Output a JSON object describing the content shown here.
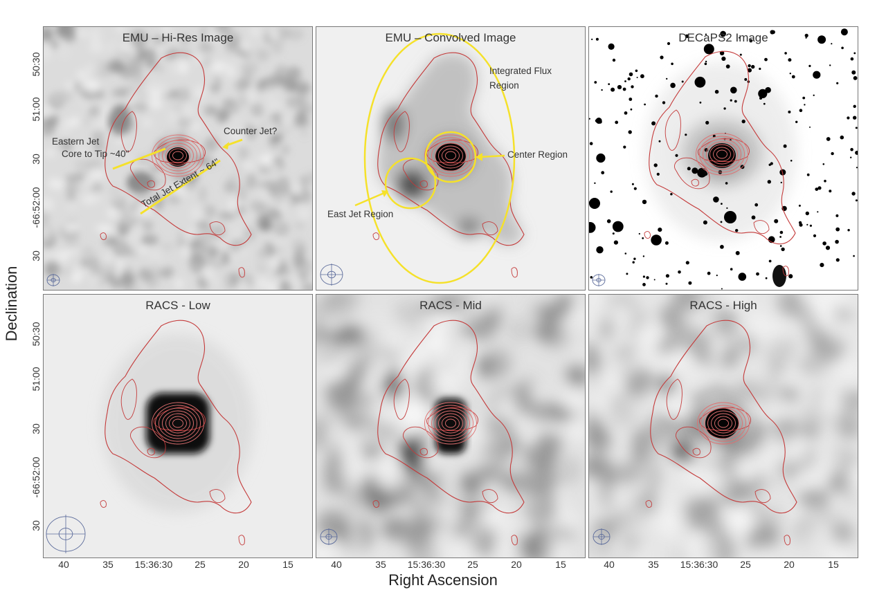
{
  "axes": {
    "ylabel": "Declination",
    "xlabel": "Right Ascension",
    "yticks_top": [
      "50:30",
      "51:00",
      "30",
      "-66:52:00",
      "30"
    ],
    "yticks_bottom": [
      "50:30",
      "51:00",
      "30",
      "-66:52:00",
      "30"
    ],
    "xticks": [
      "40",
      "35",
      "15:36:30",
      "25",
      "20",
      "15"
    ]
  },
  "panels": [
    {
      "title": "EMU – Hi-Res Image",
      "background": "noisy-grey"
    },
    {
      "title": "EMU – Convolved Image",
      "background": "smooth-grey"
    },
    {
      "title": "DECaPS2 Image",
      "background": "optical-stars"
    },
    {
      "title": "RACS - Low",
      "background": "smooth-blur"
    },
    {
      "title": "RACS - Mid",
      "background": "blurry-noise"
    },
    {
      "title": "RACS - High",
      "background": "blurry-noise"
    }
  ],
  "annotations": {
    "eastern_jet": "Eastern Jet",
    "core_to_tip": "Core to Tip ~40\"",
    "counter_jet": "Counter Jet?",
    "total_extent": "Total Jet Extent ~ 64\"",
    "integrated_flux_1": "Integrated Flux",
    "integrated_flux_2": "Region",
    "center_region": "Center Region",
    "east_jet_region": "East Jet Region"
  },
  "colors": {
    "contour": "#c43a3a",
    "region_marker": "#f5e12a",
    "beam": "#5a6a9a"
  }
}
